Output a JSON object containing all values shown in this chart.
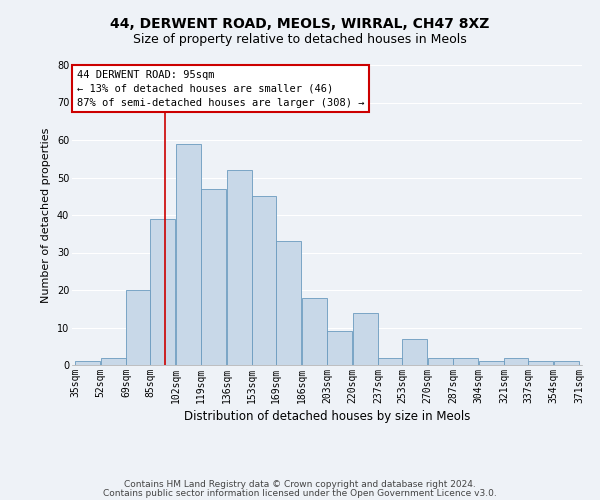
{
  "title1": "44, DERWENT ROAD, MEOLS, WIRRAL, CH47 8XZ",
  "title2": "Size of property relative to detached houses in Meols",
  "xlabel": "Distribution of detached houses by size in Meols",
  "ylabel": "Number of detached properties",
  "bar_color": "#c8d8e8",
  "bar_edge_color": "#6a9abf",
  "bins": [
    35,
    52,
    69,
    85,
    102,
    119,
    136,
    153,
    169,
    186,
    203,
    220,
    237,
    253,
    270,
    287,
    304,
    321,
    337,
    354,
    371
  ],
  "counts": [
    1,
    2,
    20,
    39,
    59,
    47,
    52,
    45,
    33,
    18,
    9,
    14,
    2,
    7,
    2,
    2,
    1,
    2,
    1,
    1
  ],
  "tick_labels": [
    "35sqm",
    "52sqm",
    "69sqm",
    "85sqm",
    "102sqm",
    "119sqm",
    "136sqm",
    "153sqm",
    "169sqm",
    "186sqm",
    "203sqm",
    "220sqm",
    "237sqm",
    "253sqm",
    "270sqm",
    "287sqm",
    "304sqm",
    "321sqm",
    "337sqm",
    "354sqm",
    "371sqm"
  ],
  "ylim": [
    0,
    80
  ],
  "yticks": [
    0,
    10,
    20,
    30,
    40,
    50,
    60,
    70,
    80
  ],
  "property_line_x": 95,
  "annotation_title": "44 DERWENT ROAD: 95sqm",
  "annotation_line1": "← 13% of detached houses are smaller (46)",
  "annotation_line2": "87% of semi-detached houses are larger (308) →",
  "annotation_box_color": "#ffffff",
  "annotation_box_edge": "#cc0000",
  "red_line_color": "#cc0000",
  "footer1": "Contains HM Land Registry data © Crown copyright and database right 2024.",
  "footer2": "Contains public sector information licensed under the Open Government Licence v3.0.",
  "bg_color": "#eef2f7",
  "grid_color": "#ffffff",
  "title1_fontsize": 10,
  "title2_fontsize": 9,
  "xlabel_fontsize": 8.5,
  "ylabel_fontsize": 8,
  "tick_fontsize": 7,
  "footer_fontsize": 6.5,
  "annot_fontsize": 7.5
}
